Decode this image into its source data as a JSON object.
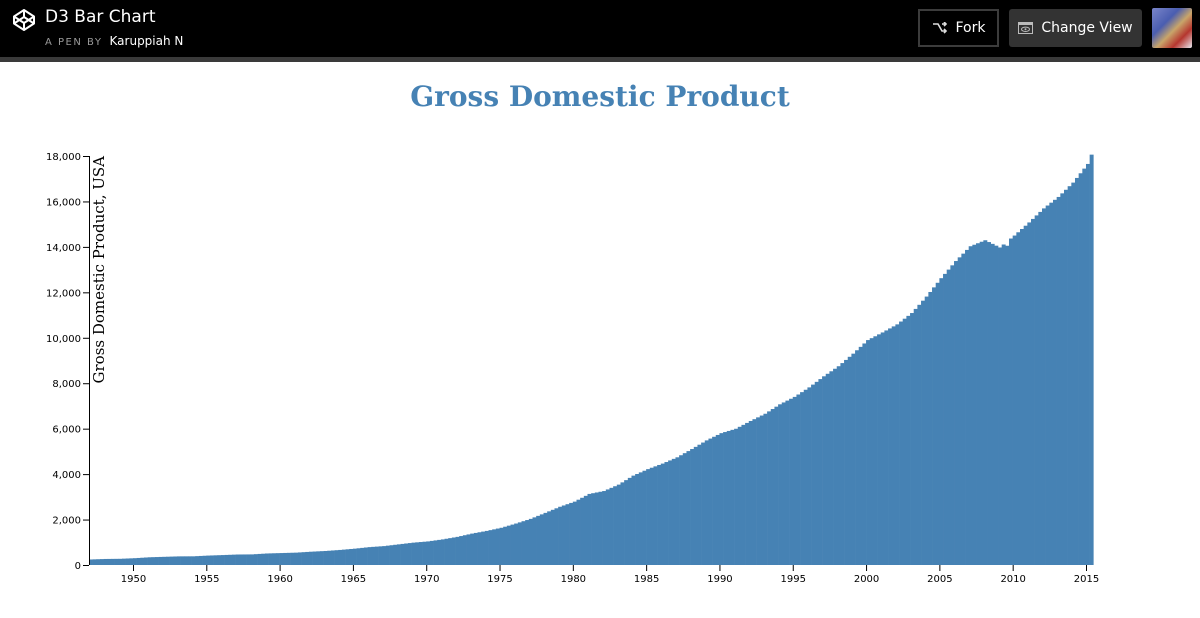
{
  "header": {
    "app_title": "D3 Bar Chart",
    "byline_prefix": "A PEN BY",
    "author": "Karuppiah N",
    "fork_label": "Fork",
    "change_view_label": "Change View",
    "icons": {
      "logo": "codepen-logo-icon",
      "fork": "fork-icon",
      "change_view": "eye-window-icon",
      "avatar": "user-avatar"
    }
  },
  "colors": {
    "bar": "#4682b4",
    "title": "#4682b4",
    "header_bg": "#000000",
    "button_dark": "#333333"
  },
  "chart_data": {
    "type": "bar",
    "title": "Gross Domestic Product",
    "xlabel": "",
    "ylabel": "Gross Domestic Product, USA",
    "ylim": [
      0,
      18000
    ],
    "xlim": [
      1947,
      2015.5
    ],
    "grid": false,
    "legend": null,
    "y_ticks": [
      "0",
      "2,000",
      "4,000",
      "6,000",
      "8,000",
      "10,000",
      "12,000",
      "14,000",
      "16,000",
      "18,000"
    ],
    "x_ticks": [
      "1950",
      "1955",
      "1960",
      "1965",
      "1970",
      "1975",
      "1980",
      "1985",
      "1990",
      "1995",
      "2000",
      "2005",
      "2010",
      "2015"
    ],
    "frequency": "quarterly",
    "series": [
      {
        "name": "GDP",
        "x": [
          1947,
          1948,
          1949,
          1950,
          1951,
          1952,
          1953,
          1954,
          1955,
          1956,
          1957,
          1958,
          1959,
          1960,
          1961,
          1962,
          1963,
          1964,
          1965,
          1966,
          1967,
          1968,
          1969,
          1970,
          1971,
          1972,
          1973,
          1974,
          1975,
          1976,
          1977,
          1978,
          1979,
          1980,
          1981,
          1982,
          1983,
          1984,
          1985,
          1986,
          1987,
          1988,
          1989,
          1990,
          1991,
          1992,
          1993,
          1994,
          1995,
          1996,
          1997,
          1998,
          1999,
          2000,
          2001,
          2002,
          2003,
          2004,
          2005,
          2006,
          2007,
          2008,
          2009,
          2010,
          2011,
          2012,
          2013,
          2014,
          2015
        ],
        "values": [
          243,
          266,
          273,
          300,
          340,
          360,
          380,
          382,
          415,
          437,
          462,
          467,
          507,
          526,
          544,
          585,
          617,
          663,
          719,
          787,
          832,
          909,
          984,
          1038,
          1127,
          1238,
          1382,
          1500,
          1638,
          1825,
          2030,
          2294,
          2563,
          2789,
          3128,
          3255,
          3537,
          3933,
          4220,
          4463,
          4740,
          5104,
          5484,
          5803,
          5996,
          6338,
          6657,
          7072,
          7398,
          7817,
          8304,
          8748,
          9301,
          9899,
          10234,
          10590,
          11089,
          11813,
          12623,
          13377,
          14029,
          14292,
          13974,
          14499,
          15076,
          15694,
          16198,
          16829,
          17650
        ],
        "final_value": 18060
      }
    ]
  }
}
